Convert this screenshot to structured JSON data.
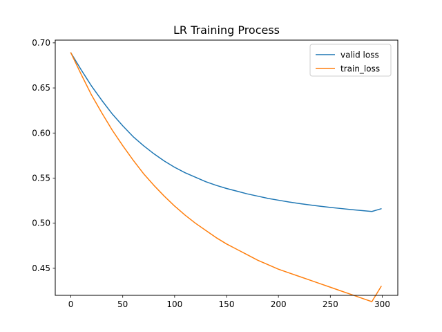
{
  "chart_data": {
    "type": "line",
    "title": "LR Training Process",
    "xlabel": "",
    "ylabel": "",
    "xlim": [
      -15,
      315
    ],
    "ylim": [
      0.42,
      0.703
    ],
    "x_ticks": [
      0,
      50,
      100,
      150,
      200,
      250,
      300
    ],
    "y_ticks": [
      0.45,
      0.5,
      0.55,
      0.6,
      0.65,
      0.7
    ],
    "y_tick_labels": [
      "0.45",
      "0.50",
      "0.55",
      "0.60",
      "0.65",
      "0.70"
    ],
    "grid": false,
    "legend_position": "upper-right",
    "x": [
      0,
      10,
      20,
      30,
      40,
      50,
      60,
      70,
      80,
      90,
      100,
      110,
      120,
      130,
      140,
      150,
      160,
      170,
      180,
      190,
      200,
      210,
      220,
      230,
      240,
      250,
      260,
      270,
      280,
      290,
      299
    ],
    "series": [
      {
        "name": "valid loss",
        "color": "#1f77b4",
        "values": [
          0.689,
          0.67,
          0.652,
          0.636,
          0.621,
          0.608,
          0.596,
          0.586,
          0.577,
          0.569,
          0.562,
          0.556,
          0.551,
          0.546,
          0.542,
          0.5385,
          0.5355,
          0.5325,
          0.53,
          0.5275,
          0.5255,
          0.5235,
          0.5218,
          0.5203,
          0.5188,
          0.5175,
          0.5163,
          0.5151,
          0.514,
          0.513,
          0.516
        ]
      },
      {
        "name": "train_loss",
        "color": "#ff7f0e",
        "values": [
          0.689,
          0.665,
          0.642,
          0.622,
          0.603,
          0.586,
          0.57,
          0.555,
          0.542,
          0.53,
          0.519,
          0.509,
          0.5,
          0.492,
          0.484,
          0.477,
          0.471,
          0.465,
          0.459,
          0.454,
          0.449,
          0.445,
          0.441,
          0.437,
          0.433,
          0.429,
          0.425,
          0.421,
          0.417,
          0.413,
          0.43
        ]
      }
    ]
  }
}
